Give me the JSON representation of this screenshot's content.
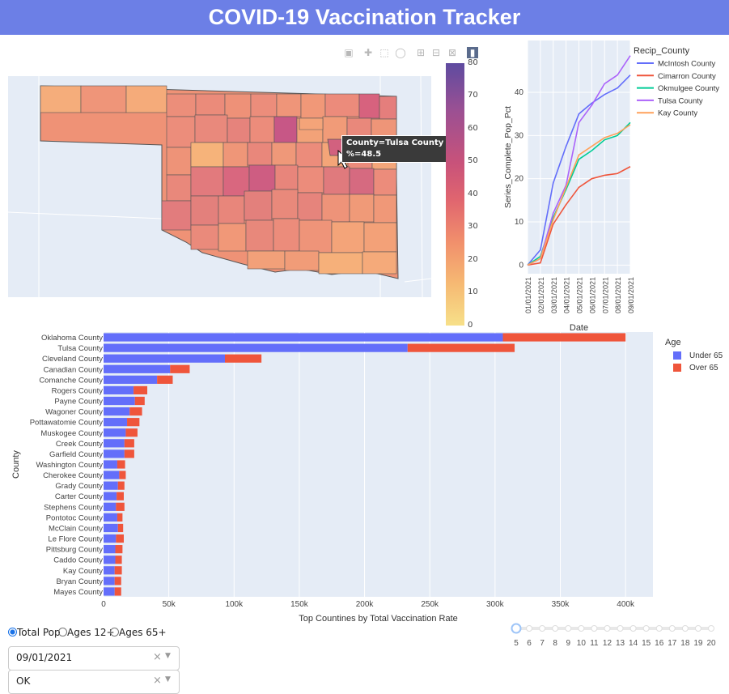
{
  "header": {
    "title": "COVID-19 Vaccination Tracker"
  },
  "map": {
    "colorbar_ticks": [
      "80",
      "70",
      "60",
      "50",
      "40",
      "30",
      "20",
      "10",
      "0"
    ],
    "tooltip": {
      "line1": "County=Tulsa County",
      "line2": "%=48.5"
    }
  },
  "modebar": [
    "camera-icon",
    "pan-icon",
    "box-select-icon",
    "lasso-icon",
    "zoom-in-icon",
    "zoom-out-icon",
    "reset-icon",
    "plotly-logo-icon"
  ],
  "chart_data": [
    {
      "type": "line",
      "x": [
        "01/01/2021",
        "02/01/2021",
        "03/01/2021",
        "04/01/2021",
        "05/01/2021",
        "06/01/2021",
        "07/01/2021",
        "08/01/2021",
        "09/01/2021"
      ],
      "xlabel": "Date",
      "ylabel": "Series_Complete_Pop_Pct",
      "ylim": [
        -2,
        52
      ],
      "yticks": [
        "0",
        "10",
        "20",
        "30",
        "40"
      ],
      "legend_title": "Recip_County",
      "series": [
        {
          "name": "McIntosh County",
          "color": "#636efa",
          "values": [
            0,
            3.5,
            19,
            27.5,
            35,
            37.5,
            39.5,
            41,
            44
          ]
        },
        {
          "name": "Cimarron County",
          "color": "#ef553b",
          "values": [
            0,
            0.5,
            9.5,
            14,
            18,
            20,
            20.8,
            21.2,
            22.8
          ]
        },
        {
          "name": "Okmulgee County",
          "color": "#00cc96",
          "values": [
            0,
            2,
            11,
            17.5,
            24.5,
            26.5,
            29,
            30,
            33
          ]
        },
        {
          "name": "Tulsa County",
          "color": "#ab63fa",
          "values": [
            0,
            1.5,
            12,
            18.5,
            33,
            37,
            42,
            44,
            48.5
          ]
        },
        {
          "name": "Kay County",
          "color": "#ffa15a",
          "values": [
            0,
            1.5,
            10.5,
            18,
            25.5,
            27.5,
            29.5,
            30.5,
            32.5
          ]
        }
      ]
    },
    {
      "type": "bar",
      "orientation": "horizontal",
      "stacked": true,
      "categories": [
        "Oklahoma County",
        "Tulsa County",
        "Cleveland County",
        "Canadian County",
        "Comanche County",
        "Rogers County",
        "Payne County",
        "Wagoner County",
        "Pottawatomie County",
        "Muskogee County",
        "Creek County",
        "Garfield County",
        "Washington County",
        "Cherokee County",
        "Grady County",
        "Carter County",
        "Stephens County",
        "Pontotoc County",
        "McClain County",
        "Le Flore County",
        "Pittsburg County",
        "Caddo County",
        "Kay County",
        "Bryan County",
        "Mayes County"
      ],
      "xlabel": "Top Countines by Total Vaccination Rate",
      "ylabel": "County",
      "xlim": [
        0,
        421000
      ],
      "xticks": [
        "0",
        "50k",
        "100k",
        "150k",
        "200k",
        "250k",
        "300k",
        "350k",
        "400k"
      ],
      "legend_title": "Age",
      "series": [
        {
          "name": "Under 65",
          "color": "#636efa",
          "values": [
            306000,
            233000,
            93000,
            51000,
            41000,
            23000,
            24000,
            20000,
            18000,
            17000,
            16000,
            16000,
            10500,
            12000,
            11000,
            10000,
            9500,
            10500,
            11000,
            9500,
            9000,
            9000,
            8500,
            8500,
            8500
          ]
        },
        {
          "name": "Over 65",
          "color": "#ef553b",
          "values": [
            94000,
            82000,
            28000,
            15000,
            12000,
            10500,
            7500,
            9500,
            9500,
            9000,
            7500,
            7500,
            6000,
            5000,
            5000,
            5500,
            6500,
            4000,
            4000,
            6000,
            5500,
            5000,
            5500,
            5000,
            5000
          ]
        }
      ]
    }
  ],
  "radio": {
    "options": [
      "Total Pop",
      "Ages 12+",
      "Ages 65+"
    ],
    "selected": 0
  },
  "slider": {
    "ticks": [
      "5",
      "6",
      "7",
      "8",
      "9",
      "10",
      "11",
      "12",
      "13",
      "14",
      "15",
      "16",
      "17",
      "18",
      "19",
      "20"
    ],
    "value": 5
  },
  "dropdowns": [
    {
      "value": "09/01/2021",
      "clear": "×",
      "caret": "▼"
    },
    {
      "value": "OK",
      "clear": "×",
      "caret": "▼"
    }
  ]
}
